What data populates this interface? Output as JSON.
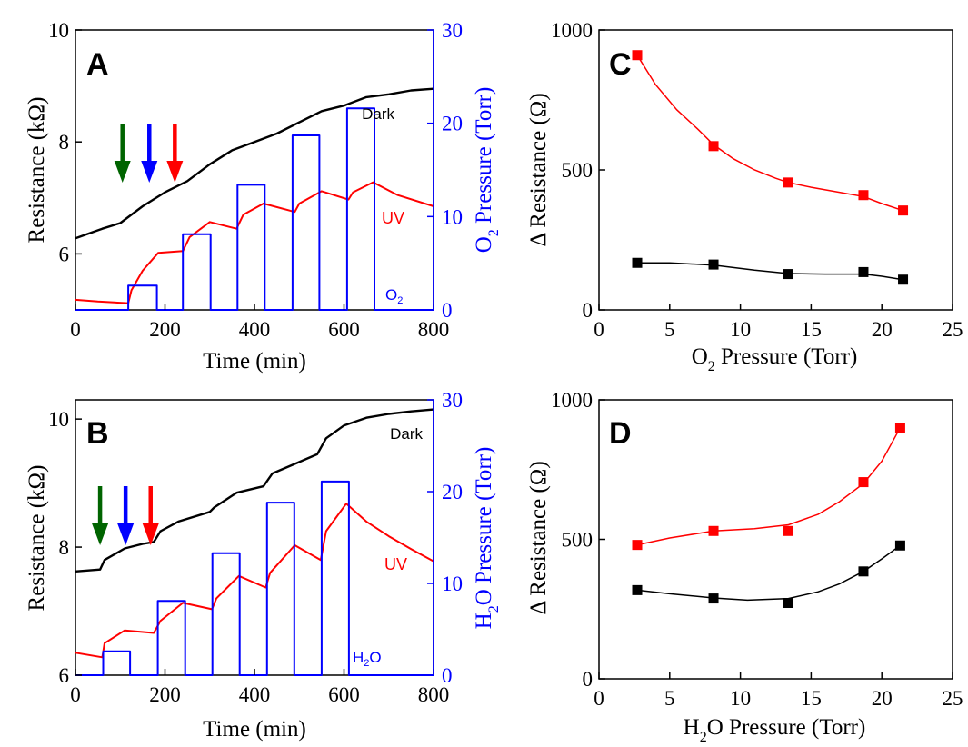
{
  "colors": {
    "black": "#000000",
    "red": "#ff0000",
    "blue": "#0000ff",
    "green": "#006400",
    "axis_blue": "#0000ff"
  },
  "chart_data": [
    {
      "id": "A",
      "panel_label": "A",
      "type": "line",
      "xlabel": "Time (min)",
      "ylabel": "Resistance (kΩ)",
      "y2label_parts": [
        "O",
        "2",
        " Pressure (Torr)"
      ],
      "xlim": [
        0,
        800
      ],
      "ylim": [
        5,
        10
      ],
      "y2lim": [
        0,
        30
      ],
      "xticks": [
        "0",
        "200",
        "400",
        "600",
        "800"
      ],
      "yticks": [
        "6",
        "8",
        "10"
      ],
      "y2ticks": [
        "0",
        "10",
        "20",
        "30"
      ],
      "annotations": {
        "dark": "Dark",
        "uv": "UV",
        "gas_parts": [
          "O",
          "2"
        ]
      },
      "arrows": [
        {
          "x": 105,
          "color": "green"
        },
        {
          "x": 165,
          "color": "blue"
        },
        {
          "x": 222,
          "color": "red"
        }
      ],
      "series": [
        {
          "name": "Dark",
          "color": "black",
          "axis": "left",
          "points": [
            [
              0,
              6.28
            ],
            [
              60,
              6.45
            ],
            [
              100,
              6.55
            ],
            [
              150,
              6.85
            ],
            [
              200,
              7.1
            ],
            [
              250,
              7.3
            ],
            [
              300,
              7.6
            ],
            [
              350,
              7.85
            ],
            [
              400,
              8.0
            ],
            [
              450,
              8.15
            ],
            [
              500,
              8.35
            ],
            [
              550,
              8.55
            ],
            [
              600,
              8.65
            ],
            [
              650,
              8.8
            ],
            [
              700,
              8.85
            ],
            [
              750,
              8.92
            ],
            [
              800,
              8.95
            ]
          ]
        },
        {
          "name": "UV",
          "color": "red",
          "axis": "left",
          "points": [
            [
              0,
              5.18
            ],
            [
              50,
              5.15
            ],
            [
              118,
              5.12
            ],
            [
              125,
              5.35
            ],
            [
              150,
              5.7
            ],
            [
              185,
              6.02
            ],
            [
              240,
              6.05
            ],
            [
              255,
              6.3
            ],
            [
              300,
              6.57
            ],
            [
              360,
              6.45
            ],
            [
              375,
              6.7
            ],
            [
              420,
              6.9
            ],
            [
              490,
              6.75
            ],
            [
              500,
              6.9
            ],
            [
              550,
              7.12
            ],
            [
              610,
              6.97
            ],
            [
              620,
              7.1
            ],
            [
              665,
              7.28
            ],
            [
              720,
              7.05
            ],
            [
              800,
              6.85
            ]
          ]
        },
        {
          "name": "O2",
          "color": "blue",
          "axis": "right",
          "points": [
            [
              0,
              0
            ],
            [
              118,
              0
            ],
            [
              118,
              2.6
            ],
            [
              182,
              2.6
            ],
            [
              182,
              0
            ],
            [
              240,
              0
            ],
            [
              240,
              8.1
            ],
            [
              302,
              8.1
            ],
            [
              302,
              0
            ],
            [
              362,
              0
            ],
            [
              362,
              13.4
            ],
            [
              423,
              13.4
            ],
            [
              423,
              0
            ],
            [
              485,
              0
            ],
            [
              485,
              18.7
            ],
            [
              545,
              18.7
            ],
            [
              545,
              0
            ],
            [
              607,
              0
            ],
            [
              607,
              21.6
            ],
            [
              668,
              21.6
            ],
            [
              668,
              0
            ],
            [
              800,
              0
            ]
          ]
        }
      ]
    },
    {
      "id": "B",
      "panel_label": "B",
      "type": "line",
      "xlabel": "Time (min)",
      "ylabel": "Resistance (kΩ)",
      "y2label_parts": [
        "H",
        "2",
        "O Pressure (Torr)"
      ],
      "xlim": [
        0,
        800
      ],
      "ylim": [
        6,
        10.3
      ],
      "y2lim": [
        0,
        30
      ],
      "xticks": [
        "0",
        "200",
        "400",
        "600",
        "800"
      ],
      "yticks": [
        "6",
        "8",
        "10"
      ],
      "y2ticks": [
        "0",
        "10",
        "20",
        "30"
      ],
      "annotations": {
        "dark": "Dark",
        "uv": "UV",
        "gas_parts": [
          "H",
          "2",
          "O"
        ]
      },
      "arrows": [
        {
          "x": 55,
          "color": "green"
        },
        {
          "x": 112,
          "color": "blue"
        },
        {
          "x": 168,
          "color": "red"
        }
      ],
      "series": [
        {
          "name": "Dark",
          "color": "black",
          "axis": "left",
          "points": [
            [
              0,
              7.62
            ],
            [
              55,
              7.65
            ],
            [
              65,
              7.8
            ],
            [
              110,
              7.98
            ],
            [
              150,
              8.05
            ],
            [
              175,
              8.08
            ],
            [
              190,
              8.25
            ],
            [
              230,
              8.4
            ],
            [
              300,
              8.55
            ],
            [
              310,
              8.62
            ],
            [
              360,
              8.85
            ],
            [
              420,
              8.95
            ],
            [
              440,
              9.15
            ],
            [
              490,
              9.3
            ],
            [
              540,
              9.45
            ],
            [
              560,
              9.7
            ],
            [
              600,
              9.9
            ],
            [
              650,
              10.02
            ],
            [
              700,
              10.08
            ],
            [
              750,
              10.12
            ],
            [
              800,
              10.15
            ]
          ]
        },
        {
          "name": "UV",
          "color": "red",
          "axis": "left",
          "points": [
            [
              0,
              6.35
            ],
            [
              60,
              6.28
            ],
            [
              65,
              6.5
            ],
            [
              110,
              6.7
            ],
            [
              175,
              6.66
            ],
            [
              190,
              6.85
            ],
            [
              240,
              7.13
            ],
            [
              305,
              7.03
            ],
            [
              315,
              7.2
            ],
            [
              365,
              7.55
            ],
            [
              425,
              7.37
            ],
            [
              435,
              7.6
            ],
            [
              490,
              8.03
            ],
            [
              548,
              7.8
            ],
            [
              560,
              8.25
            ],
            [
              605,
              8.68
            ],
            [
              650,
              8.4
            ],
            [
              700,
              8.17
            ],
            [
              750,
              7.97
            ],
            [
              800,
              7.78
            ]
          ]
        },
        {
          "name": "H2O",
          "color": "blue",
          "axis": "right",
          "points": [
            [
              0,
              0
            ],
            [
              62,
              0
            ],
            [
              62,
              2.6
            ],
            [
              122,
              2.6
            ],
            [
              122,
              0
            ],
            [
              184,
              0
            ],
            [
              184,
              8.1
            ],
            [
              245,
              8.1
            ],
            [
              245,
              0
            ],
            [
              306,
              0
            ],
            [
              306,
              13.3
            ],
            [
              367,
              13.3
            ],
            [
              367,
              0
            ],
            [
              428,
              0
            ],
            [
              428,
              18.8
            ],
            [
              489,
              18.8
            ],
            [
              489,
              0
            ],
            [
              550,
              0
            ],
            [
              550,
              21.1
            ],
            [
              611,
              21.1
            ],
            [
              611,
              0
            ],
            [
              800,
              0
            ]
          ]
        }
      ]
    },
    {
      "id": "C",
      "panel_label": "C",
      "type": "scatter",
      "xlabel_parts": [
        "O",
        "2",
        " Pressure (Torr)"
      ],
      "ylabel": "Δ Resistance (Ω)",
      "xlim": [
        0,
        25
      ],
      "ylim": [
        0,
        1000
      ],
      "xticks": [
        "0",
        "5",
        "10",
        "15",
        "20",
        "25"
      ],
      "yticks": [
        "0",
        "500",
        "1000"
      ],
      "series": [
        {
          "name": "UV",
          "color": "red",
          "x": [
            2.7,
            8.1,
            13.4,
            18.7,
            21.5
          ],
          "y": [
            910,
            585,
            455,
            410,
            355
          ],
          "curve": [
            [
              2.7,
              910
            ],
            [
              4,
              805
            ],
            [
              5.5,
              715
            ],
            [
              7,
              645
            ],
            [
              8.1,
              590
            ],
            [
              9.5,
              540
            ],
            [
              11,
              500
            ],
            [
              12.5,
              470
            ],
            [
              13.4,
              455
            ],
            [
              15,
              438
            ],
            [
              17,
              420
            ],
            [
              18.7,
              405
            ],
            [
              20,
              380
            ],
            [
              21.5,
              355
            ]
          ]
        },
        {
          "name": "Dark",
          "color": "black",
          "x": [
            2.7,
            8.1,
            13.4,
            18.7,
            21.5
          ],
          "y": [
            168,
            162,
            128,
            135,
            108
          ],
          "curve": [
            [
              2.7,
              168
            ],
            [
              5,
              168
            ],
            [
              8.1,
              160
            ],
            [
              11,
              142
            ],
            [
              13.4,
              130
            ],
            [
              16,
              128
            ],
            [
              18.7,
              128
            ],
            [
              20,
              120
            ],
            [
              21.5,
              108
            ]
          ]
        }
      ]
    },
    {
      "id": "D",
      "panel_label": "D",
      "type": "scatter",
      "xlabel_parts": [
        "H",
        "2",
        "O Pressure (Torr)"
      ],
      "ylabel": "Δ Resistance (Ω)",
      "xlim": [
        0,
        25
      ],
      "ylim": [
        0,
        1000
      ],
      "xticks": [
        "0",
        "5",
        "10",
        "15",
        "20",
        "25"
      ],
      "yticks": [
        "0",
        "500",
        "1000"
      ],
      "series": [
        {
          "name": "UV",
          "color": "red",
          "x": [
            2.7,
            8.1,
            13.4,
            18.7,
            21.3
          ],
          "y": [
            480,
            530,
            530,
            705,
            900
          ],
          "curve": [
            [
              2.7,
              480
            ],
            [
              5,
              505
            ],
            [
              8.1,
              530
            ],
            [
              11,
              538
            ],
            [
              13.4,
              552
            ],
            [
              15.5,
              590
            ],
            [
              17,
              635
            ],
            [
              18.7,
              700
            ],
            [
              20,
              780
            ],
            [
              21.3,
              900
            ]
          ]
        },
        {
          "name": "Dark",
          "color": "black",
          "x": [
            2.7,
            8.1,
            13.4,
            18.7,
            21.3
          ],
          "y": [
            318,
            288,
            272,
            385,
            478
          ],
          "curve": [
            [
              2.7,
              318
            ],
            [
              5,
              305
            ],
            [
              8.1,
              290
            ],
            [
              10.5,
              282
            ],
            [
              13.4,
              288
            ],
            [
              15.5,
              312
            ],
            [
              17,
              340
            ],
            [
              18.7,
              385
            ],
            [
              20,
              430
            ],
            [
              21.3,
              478
            ]
          ]
        }
      ]
    }
  ]
}
